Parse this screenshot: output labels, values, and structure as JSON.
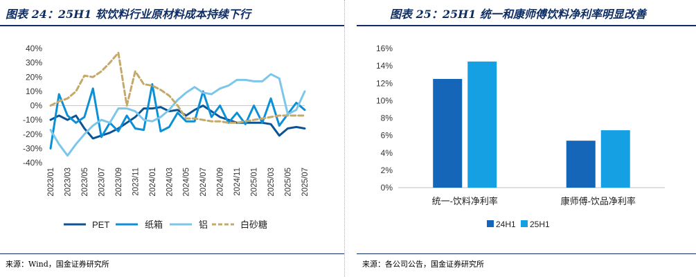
{
  "left": {
    "title": "图表 24：25H1 软饮料行业原材料成本持续下行",
    "source": "来源：Wind，国金证券研究所"
  },
  "right": {
    "title": "图表 25：25H1 统一和康师傅饮料净利率明显改善",
    "source": "来源：各公司公告，国金证券研究所"
  },
  "chart_data": [
    {
      "type": "line",
      "title": "",
      "xlabel": "",
      "ylabel": "",
      "ylim": [
        -0.4,
        0.4
      ],
      "y_ticks": [
        "40%",
        "30%",
        "20%",
        "10%",
        "0%",
        "-10%",
        "-20%",
        "-30%",
        "-40%"
      ],
      "x_ticks": [
        "2023/01",
        "2023/03",
        "2023/05",
        "2023/07",
        "2023/09",
        "2023/11",
        "2024/01",
        "2024/03",
        "2024/05",
        "2024/07",
        "2024/09",
        "2024/11",
        "2025/01",
        "2025/03",
        "2025/05",
        "2025/07"
      ],
      "x": [
        "2023/01",
        "2023/02",
        "2023/03",
        "2023/04",
        "2023/05",
        "2023/06",
        "2023/07",
        "2023/08",
        "2023/09",
        "2023/10",
        "2023/11",
        "2023/12",
        "2024/01",
        "2024/02",
        "2024/03",
        "2024/04",
        "2024/05",
        "2024/06",
        "2024/07",
        "2024/08",
        "2024/09",
        "2024/10",
        "2024/11",
        "2024/12",
        "2025/01",
        "2025/02",
        "2025/03",
        "2025/04",
        "2025/05",
        "2025/06",
        "2025/07"
      ],
      "legend_position": "bottom",
      "series": [
        {
          "name": "PET",
          "color": "#0b5394",
          "dash": "solid",
          "values": [
            -0.1,
            -0.07,
            -0.1,
            -0.07,
            -0.16,
            -0.23,
            -0.21,
            -0.19,
            -0.16,
            -0.12,
            -0.08,
            -0.02,
            -0.02,
            -0.01,
            -0.04,
            -0.03,
            -0.07,
            -0.03,
            0.0,
            -0.04,
            -0.08,
            -0.1,
            -0.12,
            -0.12,
            -0.12,
            -0.12,
            -0.13,
            -0.21,
            -0.16,
            -0.15,
            -0.16
          ]
        },
        {
          "name": "纸箱",
          "color": "#0b8fd6",
          "dash": "solid",
          "values": [
            -0.3,
            0.08,
            -0.07,
            -0.12,
            -0.08,
            0.12,
            -0.22,
            -0.12,
            -0.18,
            -0.07,
            -0.16,
            -0.17,
            0.15,
            -0.18,
            -0.15,
            -0.05,
            -0.11,
            -0.11,
            0.1,
            -0.08,
            0.0,
            -0.12,
            -0.05,
            -0.13,
            0.0,
            -0.12,
            0.05,
            -0.14,
            -0.06,
            0.02,
            -0.03
          ]
        },
        {
          "name": "铝",
          "color": "#7cc6ea",
          "dash": "solid",
          "values": [
            -0.17,
            -0.27,
            -0.35,
            -0.27,
            -0.2,
            -0.14,
            -0.1,
            -0.12,
            -0.02,
            -0.02,
            -0.04,
            -0.1,
            -0.11,
            -0.08,
            -0.03,
            0.04,
            0.09,
            0.13,
            0.09,
            0.08,
            0.12,
            0.14,
            0.18,
            0.18,
            0.17,
            0.17,
            0.22,
            0.19,
            -0.06,
            -0.03,
            0.1
          ]
        },
        {
          "name": "白砂糖",
          "color": "#c4a96b",
          "dash": "dashed",
          "values": [
            0.0,
            0.03,
            0.05,
            0.1,
            0.21,
            0.2,
            0.24,
            0.3,
            0.37,
            0.0,
            0.24,
            0.15,
            0.14,
            0.11,
            0.07,
            0.0,
            -0.09,
            -0.09,
            -0.1,
            -0.11,
            -0.11,
            -0.12,
            -0.12,
            -0.11,
            -0.1,
            -0.09,
            -0.08,
            -0.07,
            -0.07,
            -0.07,
            -0.07
          ]
        }
      ]
    },
    {
      "type": "bar",
      "title": "",
      "xlabel": "",
      "ylabel": "",
      "ylim": [
        0,
        0.16
      ],
      "y_ticks": [
        "16%",
        "14%",
        "12%",
        "10%",
        "8%",
        "6%",
        "4%",
        "2%",
        "0%"
      ],
      "categories": [
        "统一-饮料净利率",
        "康师傅-饮品净利率"
      ],
      "legend_position": "bottom",
      "series": [
        {
          "name": "24H1",
          "color": "#1565b8",
          "values": [
            0.125,
            0.054
          ]
        },
        {
          "name": "25H1",
          "color": "#14a0e3",
          "values": [
            0.145,
            0.066
          ]
        }
      ]
    }
  ]
}
